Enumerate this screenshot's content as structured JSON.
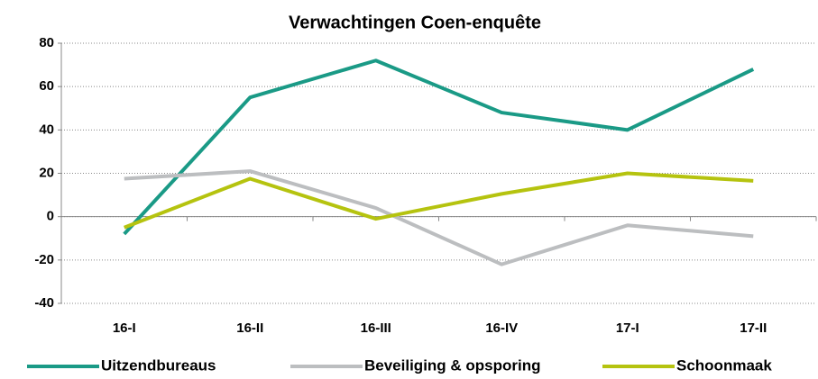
{
  "chart_data": {
    "type": "line",
    "title": "Verwachtingen Coen-enquête",
    "categories": [
      "16-I",
      "16-II",
      "16-III",
      "16-IV",
      "17-I",
      "17-II"
    ],
    "series": [
      {
        "name": "Uitzendbureaus",
        "color": "#1a9a86",
        "values": [
          -8,
          55,
          72,
          48,
          40,
          68
        ]
      },
      {
        "name": "Beveiliging & opsporing",
        "color": "#bcbec0",
        "values": [
          17.5,
          21,
          4,
          -22,
          -4,
          -9
        ]
      },
      {
        "name": "Schoonmaak",
        "color": "#b5c30f",
        "values": [
          -5,
          17.5,
          -1,
          10.5,
          20,
          16.5
        ]
      }
    ],
    "ylim": [
      -40,
      80
    ],
    "yticks": [
      -40,
      -20,
      0,
      20,
      40,
      60,
      80
    ],
    "grid": true,
    "legend": "bottom"
  }
}
